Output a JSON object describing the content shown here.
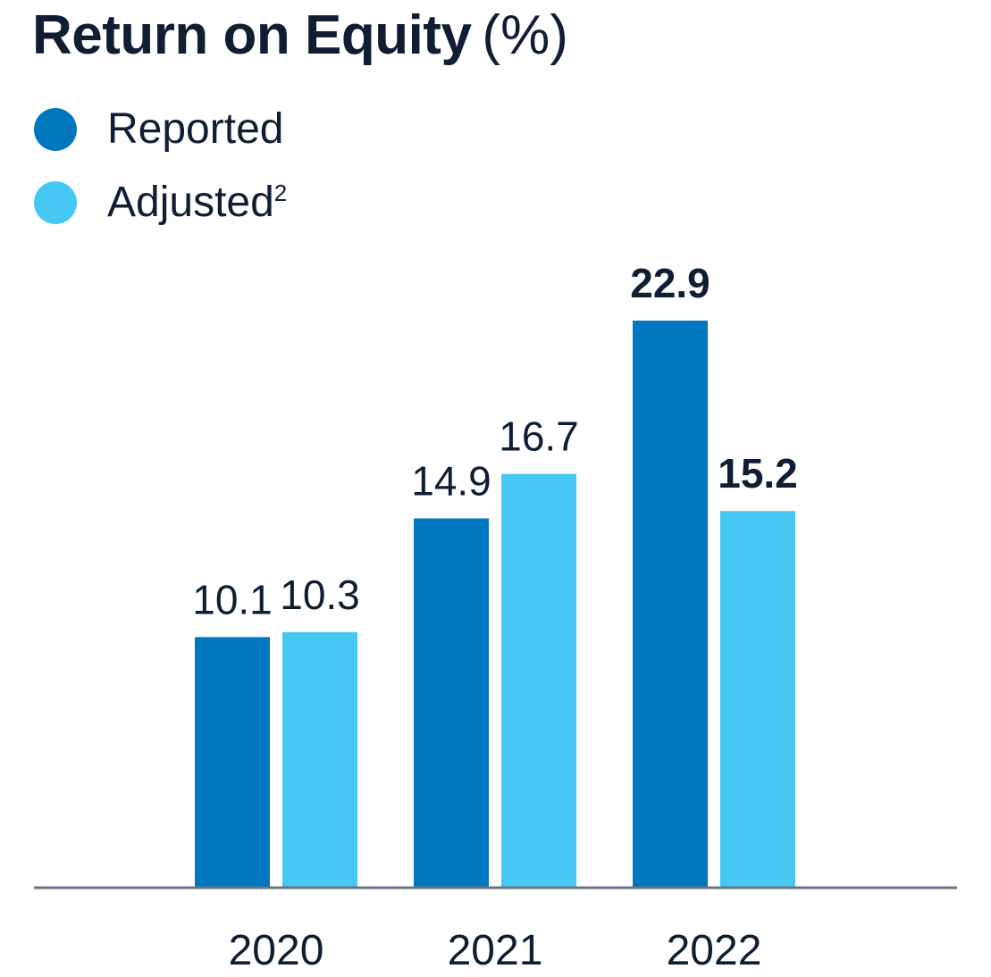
{
  "title": "Return on Equity",
  "title_unit": "(%)",
  "legend": [
    {
      "label": "Reported",
      "sup": "",
      "color": "#0077bf"
    },
    {
      "label": "Adjusted",
      "sup": "2",
      "color": "#47c7f4"
    }
  ],
  "colors": {
    "reported": "#0077bf",
    "adjusted": "#47c7f4",
    "axis": "#6b7280",
    "text": "#0f1e33"
  },
  "chart_data": {
    "type": "bar",
    "title": "Return on Equity (%)",
    "xlabel": "",
    "ylabel": "",
    "categories": [
      "2020",
      "2021",
      "2022"
    ],
    "series": [
      {
        "name": "Reported",
        "values": [
          10.1,
          14.9,
          22.9
        ],
        "labels": [
          "10.1",
          "14.9",
          "22.9"
        ],
        "bold": [
          false,
          false,
          true
        ]
      },
      {
        "name": "Adjusted",
        "values": [
          10.3,
          16.7,
          15.2
        ],
        "labels": [
          "10.3",
          "16.7",
          "15.2"
        ],
        "bold": [
          false,
          false,
          true
        ]
      }
    ],
    "ylim": [
      0,
      22.9
    ],
    "grid": false,
    "legend_position": "top-left"
  }
}
